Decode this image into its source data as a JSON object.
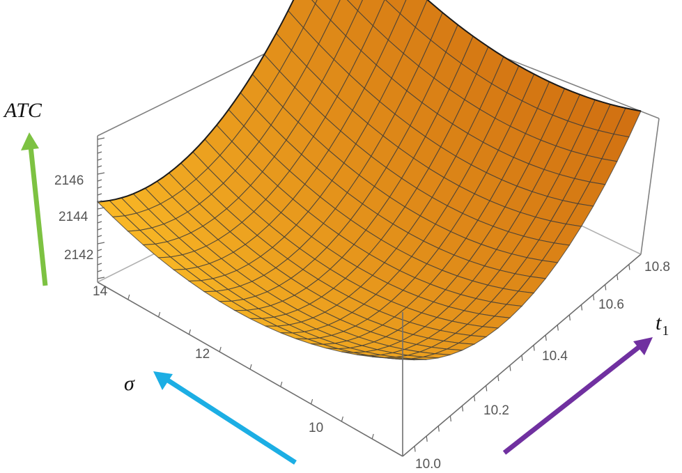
{
  "chart_data": {
    "type": "surface3d",
    "title": "",
    "z_label": "ATC",
    "x_label": "σ",
    "y_label": "t",
    "y_label_subscript": "1",
    "z_ticks": [
      "2142",
      "2144",
      "2146"
    ],
    "x_ticks": [
      "10",
      "12",
      "14"
    ],
    "y_ticks": [
      "10.0",
      "10.2",
      "10.4",
      "10.6",
      "10.8"
    ],
    "x_range": [
      9,
      14
    ],
    "y_range": [
      10.0,
      10.8
    ],
    "z_range": [
      2140.5,
      2148.5
    ],
    "surface": {
      "shape": "convex bowl (paraboloid-like), minimum near sigma≈11.5, t1≈10.4",
      "min_z_approx": 2140.5,
      "corner_values_approx": {
        "sigma14_t1_10.0": 2144.5,
        "sigma14_t1_10.8": 2148.5,
        "sigma9_t1_10.8": 2147.5,
        "sigma9_t1_10.0": 2143.0
      },
      "mesh_lines": 20,
      "color": "#F7A21B"
    },
    "arrows": [
      {
        "axis": "ATC",
        "color": "#7DC242",
        "direction": "up"
      },
      {
        "axis": "sigma",
        "color": "#1CAEE4",
        "direction": "up-left"
      },
      {
        "axis": "t1",
        "color": "#7030A0",
        "direction": "up-right"
      }
    ],
    "grid": false,
    "box": true
  }
}
